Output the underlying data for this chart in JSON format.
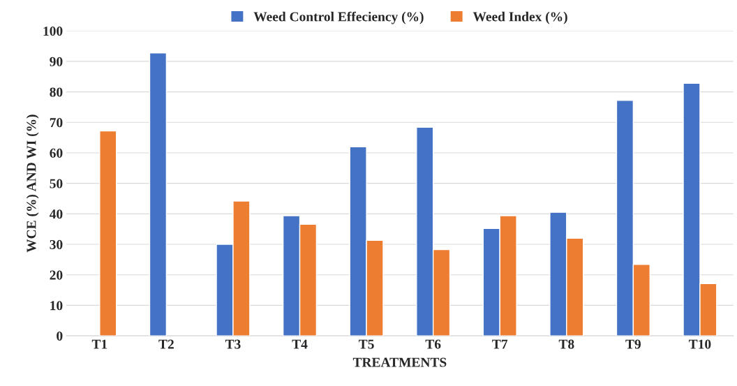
{
  "chart_data": {
    "type": "bar",
    "xlabel": "TREATMENTS",
    "ylabel": "WCE (%) AND WI (%)",
    "categories": [
      "T1",
      "T2",
      "T3",
      "T4",
      "T5",
      "T6",
      "T7",
      "T8",
      "T9",
      "T10"
    ],
    "series": [
      {
        "name": "Weed Control Effeciency (%)",
        "color": "#4472c4",
        "values": [
          null,
          92.8,
          30.0,
          39.4,
          62.0,
          68.4,
          35.2,
          40.5,
          77.2,
          82.8
        ]
      },
      {
        "name": "Weed Index (%)",
        "color": "#ed7d31",
        "values": [
          67.2,
          null,
          44.2,
          36.6,
          31.3,
          28.3,
          39.4,
          32.0,
          23.4,
          17.1
        ]
      }
    ],
    "ylim": [
      0,
      100
    ],
    "yticks": [
      0,
      10,
      20,
      30,
      40,
      50,
      60,
      70,
      80,
      90,
      100
    ],
    "grid": "y",
    "legend": "top"
  }
}
